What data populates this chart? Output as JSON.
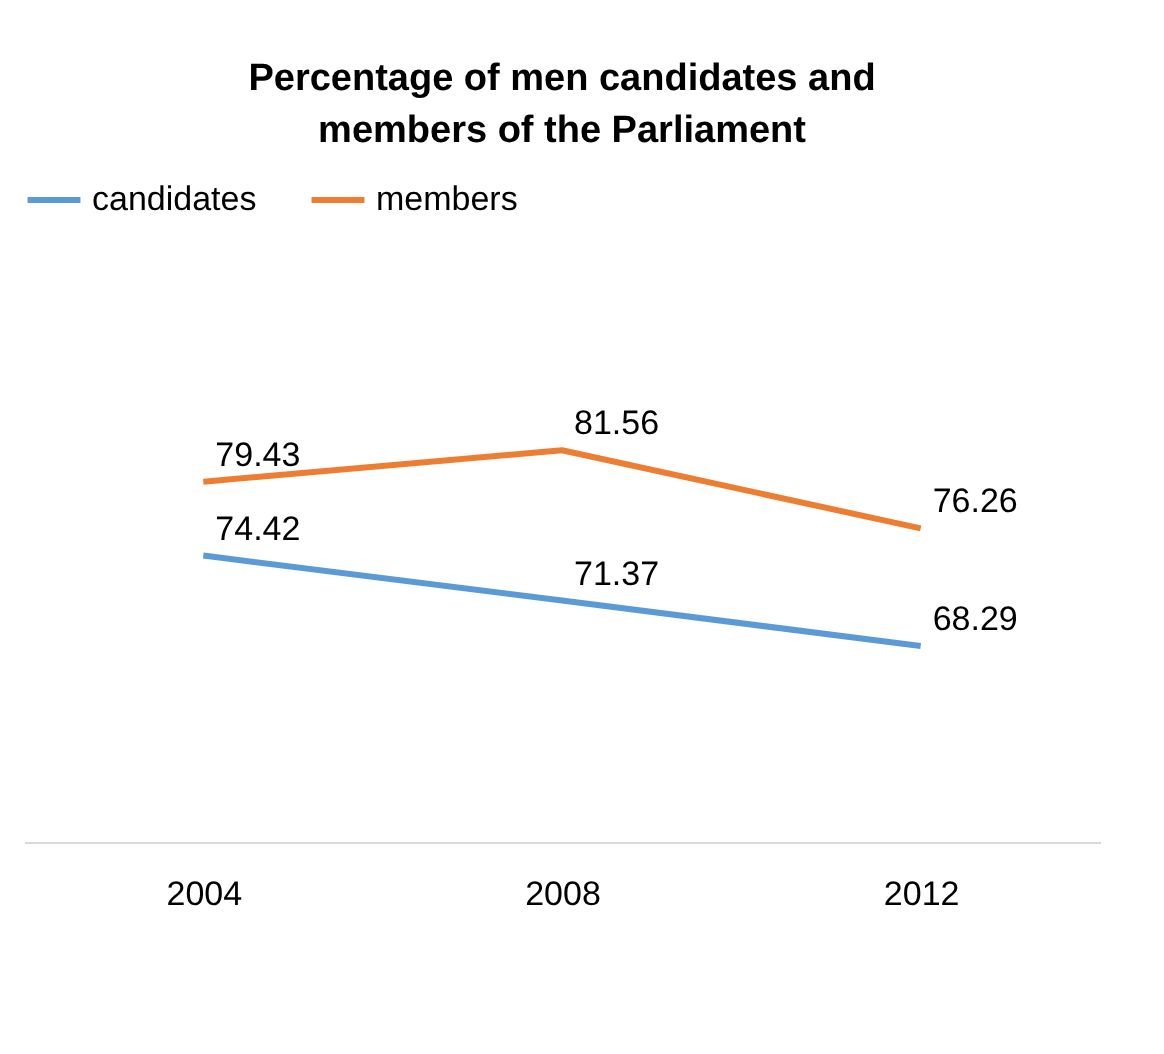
{
  "chart_data": {
    "type": "line",
    "title": "Percentage of men candidates and members of the Parliament",
    "categories": [
      "2004",
      "2008",
      "2012"
    ],
    "series": [
      {
        "name": "candidates",
        "color": "#5b9bd5",
        "values": [
          74.42,
          71.37,
          68.29
        ]
      },
      {
        "name": "members",
        "color": "#ed7d31",
        "values": [
          79.43,
          81.56,
          76.26
        ]
      }
    ],
    "tick_labels": "x",
    "data_labels": true,
    "legend": "top",
    "grid": false,
    "marker": "none",
    "line_style": "solid"
  }
}
